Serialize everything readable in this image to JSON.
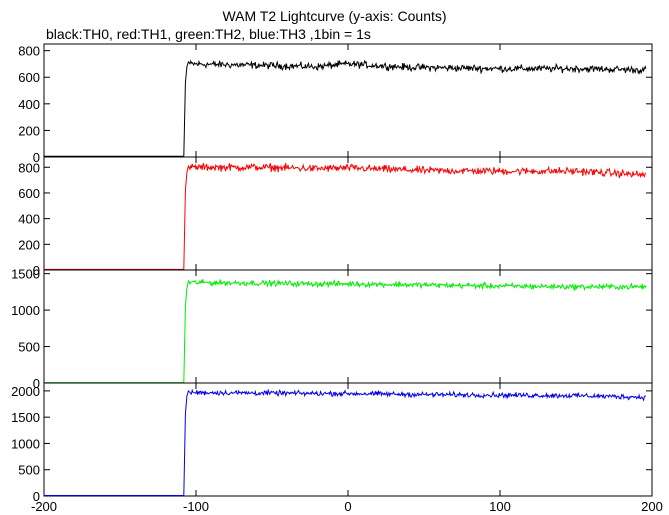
{
  "header": {
    "title": "WAM T2 Lightcurve (y-axis: Counts)",
    "subtitle": "black:TH0, red:TH1, green:TH2, blue:TH3 ,1bin = 1s"
  },
  "chart_data": {
    "type": "line",
    "xlim": [
      -200,
      200
    ],
    "x_ticks": [
      -200,
      -100,
      0,
      100,
      200
    ],
    "panels": [
      {
        "channel": "TH0",
        "color": "#000000",
        "ylim": [
          0,
          850
        ],
        "y_ticks": [
          0,
          200,
          400,
          600,
          800
        ],
        "baseline": 5,
        "onset_x": -108,
        "onset_points": [
          [
            -108,
            5
          ],
          [
            -107,
            560
          ],
          [
            -106,
            680
          ],
          [
            -105,
            715
          ]
        ],
        "segments": [
          {
            "x": -105,
            "y": 700
          },
          {
            "x": -60,
            "y": 690
          },
          {
            "x": -20,
            "y": 680
          },
          {
            "x": 0,
            "y": 700
          },
          {
            "x": 40,
            "y": 675
          },
          {
            "x": 100,
            "y": 665
          },
          {
            "x": 150,
            "y": 665
          },
          {
            "x": 196,
            "y": 655
          }
        ],
        "noise": 20
      },
      {
        "channel": "TH1",
        "color": "#ff0000",
        "ylim": [
          0,
          880
        ],
        "y_ticks": [
          0,
          200,
          400,
          600,
          800
        ],
        "baseline": 5,
        "onset_x": -108,
        "onset_points": [
          [
            -108,
            5
          ],
          [
            -107,
            620
          ],
          [
            -106,
            760
          ],
          [
            -105,
            810
          ]
        ],
        "segments": [
          {
            "x": -105,
            "y": 800
          },
          {
            "x": -60,
            "y": 800
          },
          {
            "x": -20,
            "y": 790
          },
          {
            "x": 0,
            "y": 795
          },
          {
            "x": 50,
            "y": 775
          },
          {
            "x": 100,
            "y": 770
          },
          {
            "x": 150,
            "y": 770
          },
          {
            "x": 196,
            "y": 740
          }
        ],
        "noise": 22
      },
      {
        "channel": "TH2",
        "color": "#00ee00",
        "ylim": [
          0,
          1550
        ],
        "y_ticks": [
          0,
          500,
          1000,
          1500
        ],
        "baseline": 5,
        "onset_x": -108,
        "onset_points": [
          [
            -108,
            5
          ],
          [
            -107,
            1050
          ],
          [
            -106,
            1300
          ],
          [
            -105,
            1400
          ]
        ],
        "segments": [
          {
            "x": -105,
            "y": 1380
          },
          {
            "x": -60,
            "y": 1370
          },
          {
            "x": -20,
            "y": 1360
          },
          {
            "x": 0,
            "y": 1360
          },
          {
            "x": 50,
            "y": 1345
          },
          {
            "x": 100,
            "y": 1330
          },
          {
            "x": 150,
            "y": 1320
          },
          {
            "x": 196,
            "y": 1320
          }
        ],
        "noise": 28
      },
      {
        "channel": "TH3",
        "color": "#0000ee",
        "ylim": [
          0,
          2150
        ],
        "y_ticks": [
          0,
          500,
          1000,
          1500,
          2000
        ],
        "baseline": 10,
        "onset_x": -108,
        "onset_points": [
          [
            -108,
            10
          ],
          [
            -107,
            1560
          ],
          [
            -106,
            1900
          ],
          [
            -105,
            2000
          ]
        ],
        "segments": [
          {
            "x": -105,
            "y": 1970
          },
          {
            "x": -60,
            "y": 1960
          },
          {
            "x": -20,
            "y": 1950
          },
          {
            "x": 0,
            "y": 1950
          },
          {
            "x": 50,
            "y": 1930
          },
          {
            "x": 100,
            "y": 1920
          },
          {
            "x": 150,
            "y": 1910
          },
          {
            "x": 196,
            "y": 1880
          }
        ],
        "noise": 35
      }
    ]
  }
}
